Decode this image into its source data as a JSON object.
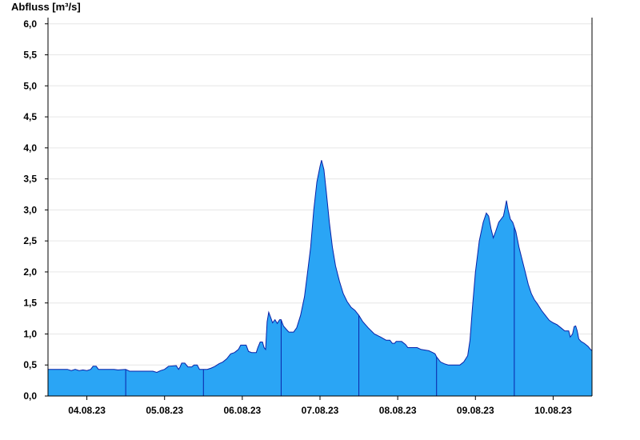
{
  "chart_data": {
    "type": "area",
    "ylabel": "Abfluss [m³/s]",
    "xlabel": "",
    "title": "",
    "ylim": [
      0,
      6.1
    ],
    "yticks": [
      "0,0",
      "0,5",
      "1,0",
      "1,5",
      "2,0",
      "2,5",
      "3,0",
      "3,5",
      "4,0",
      "4,5",
      "5,0",
      "5,5",
      "6,0"
    ],
    "x_start": "04.08.23 00:00",
    "x_range_days": [
      -0.5,
      6.5
    ],
    "day_labels": [
      "04.08.23",
      "05.08.23",
      "06.08.23",
      "07.08.23",
      "08.08.23",
      "09.08.23",
      "10.08.23"
    ],
    "grid": true,
    "fill_color": "#2aa5f5",
    "line_color": "#0a22a8",
    "series": [
      {
        "points": [
          [
            -0.5,
            0.43
          ],
          [
            -0.25,
            0.43
          ],
          [
            -0.2,
            0.41
          ],
          [
            -0.15,
            0.43
          ],
          [
            -0.1,
            0.41
          ],
          [
            -0.05,
            0.42
          ],
          [
            0.0,
            0.41
          ],
          [
            0.05,
            0.43
          ],
          [
            0.08,
            0.48
          ],
          [
            0.12,
            0.48
          ],
          [
            0.15,
            0.43
          ],
          [
            0.35,
            0.43
          ],
          [
            0.4,
            0.42
          ],
          [
            0.5,
            0.43
          ],
          [
            0.55,
            0.4
          ],
          [
            0.7,
            0.4
          ],
          [
            0.85,
            0.4
          ],
          [
            0.9,
            0.38
          ],
          [
            0.95,
            0.41
          ],
          [
            1.0,
            0.43
          ],
          [
            1.05,
            0.48
          ],
          [
            1.15,
            0.49
          ],
          [
            1.18,
            0.43
          ],
          [
            1.2,
            0.47
          ],
          [
            1.22,
            0.53
          ],
          [
            1.26,
            0.53
          ],
          [
            1.3,
            0.47
          ],
          [
            1.35,
            0.47
          ],
          [
            1.38,
            0.5
          ],
          [
            1.42,
            0.5
          ],
          [
            1.45,
            0.43
          ],
          [
            1.55,
            0.43
          ],
          [
            1.6,
            0.45
          ],
          [
            1.65,
            0.48
          ],
          [
            1.7,
            0.52
          ],
          [
            1.75,
            0.55
          ],
          [
            1.8,
            0.6
          ],
          [
            1.85,
            0.68
          ],
          [
            1.9,
            0.7
          ],
          [
            1.95,
            0.75
          ],
          [
            1.98,
            0.82
          ],
          [
            2.05,
            0.82
          ],
          [
            2.08,
            0.72
          ],
          [
            2.12,
            0.7
          ],
          [
            2.18,
            0.7
          ],
          [
            2.2,
            0.78
          ],
          [
            2.23,
            0.87
          ],
          [
            2.26,
            0.87
          ],
          [
            2.28,
            0.78
          ],
          [
            2.3,
            0.75
          ],
          [
            2.32,
            1.2
          ],
          [
            2.34,
            1.35
          ],
          [
            2.37,
            1.25
          ],
          [
            2.39,
            1.18
          ],
          [
            2.42,
            1.23
          ],
          [
            2.45,
            1.17
          ],
          [
            2.48,
            1.23
          ],
          [
            2.5,
            1.23
          ],
          [
            2.53,
            1.13
          ],
          [
            2.57,
            1.07
          ],
          [
            2.6,
            1.03
          ],
          [
            2.66,
            1.03
          ],
          [
            2.7,
            1.1
          ],
          [
            2.75,
            1.3
          ],
          [
            2.8,
            1.6
          ],
          [
            2.84,
            2.0
          ],
          [
            2.88,
            2.4
          ],
          [
            2.92,
            3.0
          ],
          [
            2.96,
            3.45
          ],
          [
            3.0,
            3.7
          ],
          [
            3.02,
            3.8
          ],
          [
            3.05,
            3.65
          ],
          [
            3.08,
            3.3
          ],
          [
            3.12,
            2.8
          ],
          [
            3.16,
            2.4
          ],
          [
            3.2,
            2.1
          ],
          [
            3.25,
            1.85
          ],
          [
            3.3,
            1.65
          ],
          [
            3.35,
            1.52
          ],
          [
            3.4,
            1.43
          ],
          [
            3.45,
            1.38
          ],
          [
            3.5,
            1.3
          ],
          [
            3.55,
            1.2
          ],
          [
            3.62,
            1.1
          ],
          [
            3.7,
            1.0
          ],
          [
            3.78,
            0.95
          ],
          [
            3.85,
            0.9
          ],
          [
            3.9,
            0.9
          ],
          [
            3.93,
            0.85
          ],
          [
            3.96,
            0.85
          ],
          [
            3.98,
            0.88
          ],
          [
            4.05,
            0.88
          ],
          [
            4.1,
            0.83
          ],
          [
            4.13,
            0.78
          ],
          [
            4.25,
            0.78
          ],
          [
            4.3,
            0.75
          ],
          [
            4.4,
            0.73
          ],
          [
            4.45,
            0.7
          ],
          [
            4.48,
            0.68
          ],
          [
            4.5,
            0.63
          ],
          [
            4.55,
            0.55
          ],
          [
            4.6,
            0.52
          ],
          [
            4.65,
            0.5
          ],
          [
            4.8,
            0.5
          ],
          [
            4.85,
            0.55
          ],
          [
            4.9,
            0.65
          ],
          [
            4.93,
            0.9
          ],
          [
            4.96,
            1.4
          ],
          [
            5.0,
            2.0
          ],
          [
            5.05,
            2.5
          ],
          [
            5.1,
            2.8
          ],
          [
            5.14,
            2.95
          ],
          [
            5.17,
            2.9
          ],
          [
            5.2,
            2.7
          ],
          [
            5.23,
            2.55
          ],
          [
            5.26,
            2.65
          ],
          [
            5.3,
            2.8
          ],
          [
            5.33,
            2.85
          ],
          [
            5.36,
            2.9
          ],
          [
            5.38,
            3.02
          ],
          [
            5.4,
            3.15
          ],
          [
            5.42,
            3.0
          ],
          [
            5.45,
            2.85
          ],
          [
            5.48,
            2.8
          ],
          [
            5.52,
            2.65
          ],
          [
            5.56,
            2.4
          ],
          [
            5.6,
            2.2
          ],
          [
            5.64,
            2.0
          ],
          [
            5.68,
            1.8
          ],
          [
            5.72,
            1.65
          ],
          [
            5.76,
            1.55
          ],
          [
            5.8,
            1.48
          ],
          [
            5.85,
            1.38
          ],
          [
            5.9,
            1.3
          ],
          [
            5.95,
            1.22
          ],
          [
            6.0,
            1.18
          ],
          [
            6.05,
            1.15
          ],
          [
            6.1,
            1.1
          ],
          [
            6.15,
            1.05
          ],
          [
            6.2,
            1.05
          ],
          [
            6.22,
            0.95
          ],
          [
            6.25,
            1.0
          ],
          [
            6.27,
            1.12
          ],
          [
            6.29,
            1.13
          ],
          [
            6.31,
            1.05
          ],
          [
            6.33,
            0.92
          ],
          [
            6.36,
            0.88
          ],
          [
            6.4,
            0.85
          ],
          [
            6.45,
            0.8
          ],
          [
            6.48,
            0.75
          ],
          [
            6.5,
            0.73
          ]
        ]
      }
    ]
  }
}
